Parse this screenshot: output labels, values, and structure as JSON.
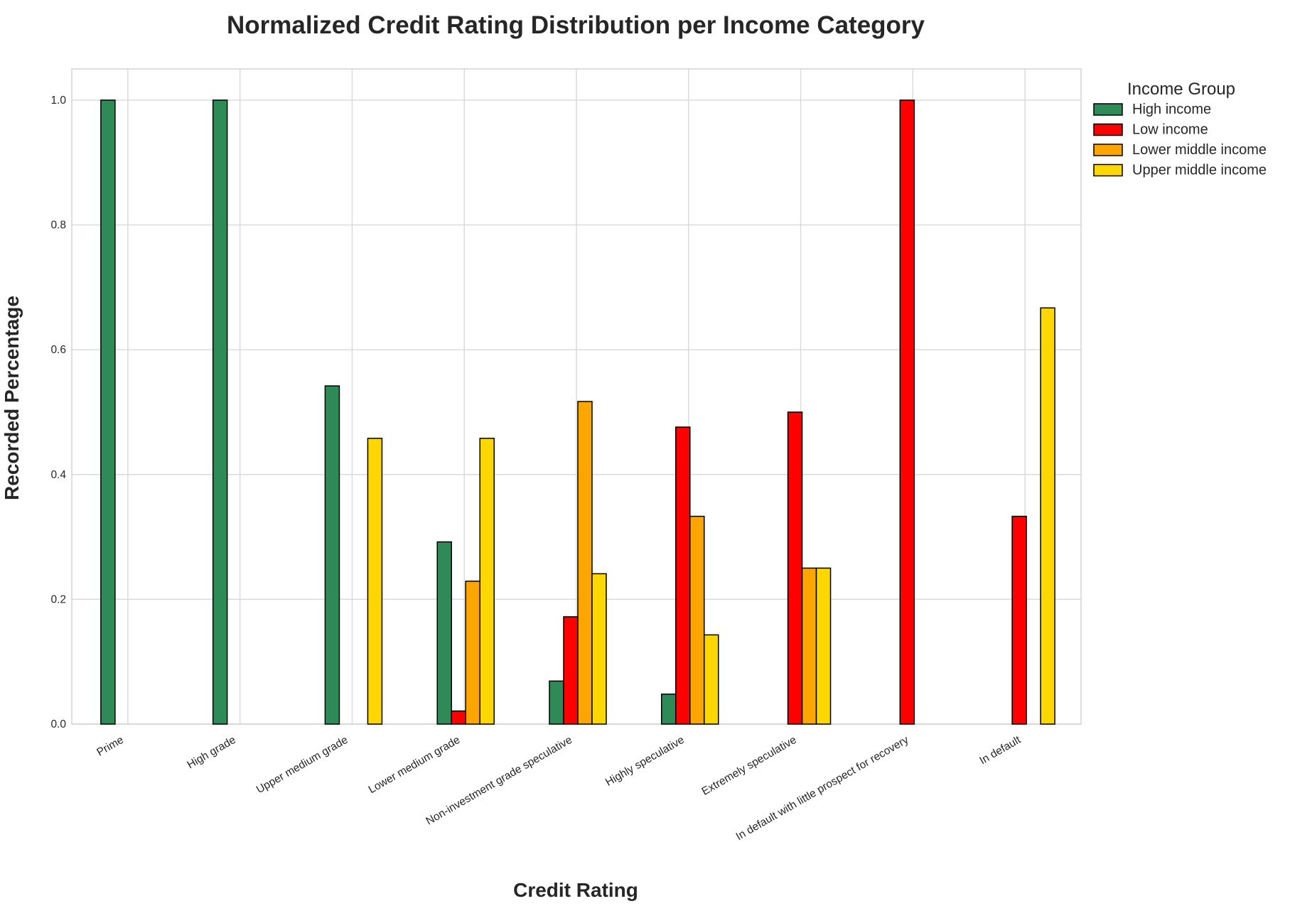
{
  "chart_data": {
    "type": "bar",
    "title": "Normalized Credit Rating Distribution per Income Category",
    "xlabel": "Credit Rating",
    "ylabel": "Recorded Percentage",
    "ylim": [
      0,
      1.05
    ],
    "yticks": [
      0.0,
      0.2,
      0.4,
      0.6,
      0.8,
      1.0
    ],
    "ytick_labels": [
      "0.0",
      "0.2",
      "0.4",
      "0.6",
      "0.8",
      "1.0"
    ],
    "grid": true,
    "legend": {
      "title": "Income Group",
      "placement": "outside-upper-right"
    },
    "categories": [
      "Prime",
      "High grade",
      "Upper medium grade",
      "Lower medium grade",
      "Non-investment grade speculative",
      "Highly speculative",
      "Extremely speculative",
      "In default with little prospect for recovery",
      "In default"
    ],
    "series": [
      {
        "name": "High income",
        "color": "#2e8b57",
        "values": [
          1.0,
          1.0,
          0.542,
          0.292,
          0.069,
          0.048,
          0.0,
          0.0,
          0.0
        ]
      },
      {
        "name": "Low income",
        "color": "#ff0000",
        "values": [
          0.0,
          0.0,
          0.0,
          0.021,
          0.172,
          0.476,
          0.5,
          1.0,
          0.333
        ]
      },
      {
        "name": "Lower middle income",
        "color": "#ffa500",
        "values": [
          0.0,
          0.0,
          0.0,
          0.229,
          0.517,
          0.333,
          0.25,
          0.0,
          0.0
        ]
      },
      {
        "name": "Upper middle income",
        "color": "#ffd700",
        "values": [
          0.0,
          0.0,
          0.458,
          0.458,
          0.241,
          0.143,
          0.25,
          0.0,
          0.667
        ]
      }
    ]
  }
}
